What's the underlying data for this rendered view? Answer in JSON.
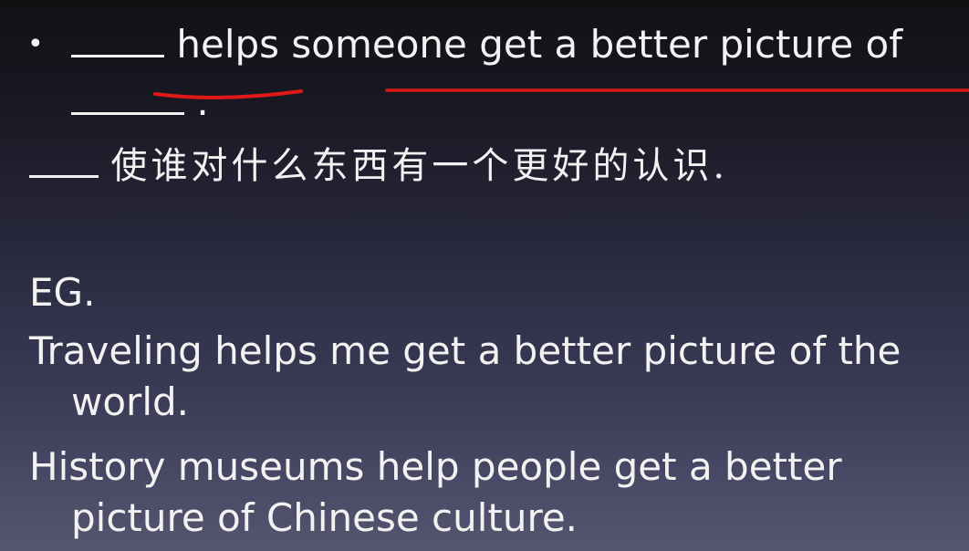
{
  "slide": {
    "bullet": {
      "glyph": "•",
      "line1_text": "helps someone get a better picture of",
      "line2_punct": "."
    },
    "translation": {
      "text": "使谁对什么东西有一个更好的认识."
    },
    "example": {
      "label": "EG.",
      "sentence1_line1": "Traveling helps me get a better picture of the",
      "sentence1_line2": "world.",
      "sentence2_line1": "History museums help people get a better",
      "sentence2_line2": "picture of Chinese culture."
    },
    "annotation_color": "#e01818",
    "text_color": "#f2f2f2"
  }
}
